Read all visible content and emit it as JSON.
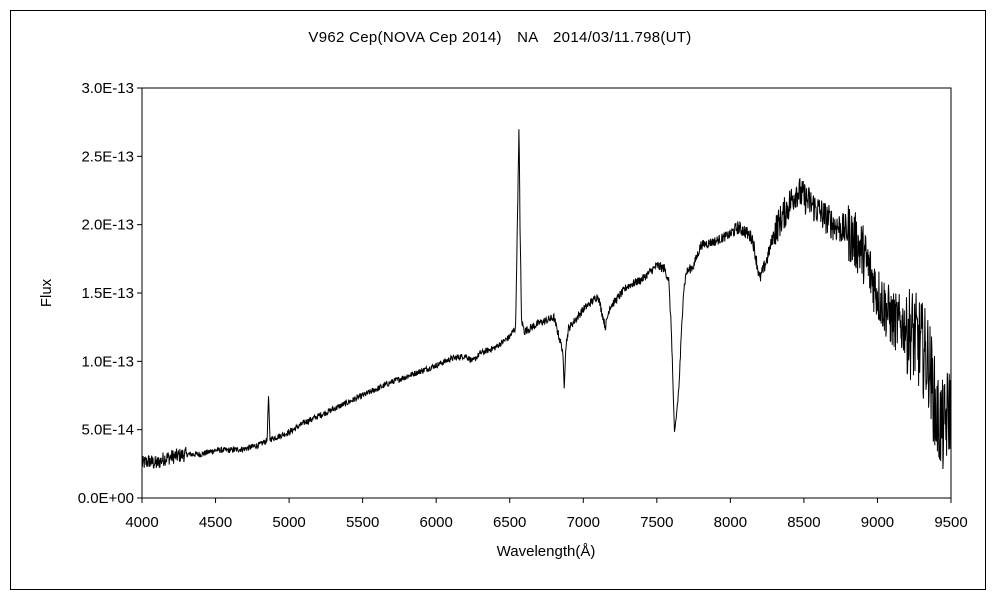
{
  "chart_data": {
    "type": "line",
    "title": "V962 Cep(NOVA Cep 2014)　NA　2014/03/11.798(UT)",
    "xlabel": "Wavelength(Å)",
    "ylabel": "Flux",
    "xlim": [
      4000,
      9500
    ],
    "ylim": [
      0,
      3e-13
    ],
    "x_ticks": [
      4000,
      4500,
      5000,
      5500,
      6000,
      6500,
      7000,
      7500,
      8000,
      8500,
      9000,
      9500
    ],
    "x_tick_labels": [
      "4000",
      "4500",
      "5000",
      "5500",
      "6000",
      "6500",
      "7000",
      "7500",
      "8000",
      "8500",
      "9000",
      "9500"
    ],
    "y_ticks": [
      0,
      5e-14,
      1e-13,
      1.5e-13,
      2e-13,
      2.5e-13,
      3e-13
    ],
    "y_tick_labels": [
      "0.0E+00",
      "5.0E-14",
      "1.0E-13",
      "1.5E-13",
      "2.0E-13",
      "2.5E-13",
      "3.0E-13"
    ],
    "grid": false,
    "legend": "none",
    "line_color": "#000000",
    "series": [
      {
        "x": [
          4000,
          4050,
          4100,
          4150,
          4200,
          4300,
          4400,
          4500,
          4600,
          4700,
          4800,
          4850,
          4860,
          4870,
          4900,
          5000,
          5100,
          5200,
          5300,
          5400,
          5500,
          5600,
          5700,
          5800,
          5900,
          6000,
          6100,
          6200,
          6250,
          6300,
          6400,
          6500,
          6540,
          6555,
          6563,
          6570,
          6580,
          6600,
          6700,
          6800,
          6860,
          6870,
          6880,
          6900,
          7000,
          7100,
          7150,
          7180,
          7200,
          7300,
          7400,
          7500,
          7550,
          7580,
          7600,
          7620,
          7650,
          7680,
          7700,
          7750,
          7800,
          7900,
          8000,
          8050,
          8100,
          8150,
          8200,
          8250,
          8300,
          8400,
          8450,
          8500,
          8600,
          8700,
          8800,
          8900,
          9000,
          9100,
          9200,
          9300,
          9350,
          9400,
          9450,
          9500
        ],
        "y": [
          2.5e-14,
          2.7e-14,
          2.5e-14,
          2.9e-14,
          3e-14,
          3.2e-14,
          3.2e-14,
          3.5e-14,
          3.5e-14,
          3.6e-14,
          3.9e-14,
          4.2e-14,
          7.4e-14,
          4.3e-14,
          4.4e-14,
          4.8e-14,
          5.5e-14,
          6e-14,
          6.5e-14,
          7e-14,
          7.5e-14,
          8e-14,
          8.5e-14,
          8.9e-14,
          9.3e-14,
          9.7e-14,
          1.02e-13,
          1.04e-13,
          1e-13,
          1.06e-13,
          1.1e-13,
          1.18e-13,
          1.25e-13,
          2.2e-13,
          2.71e-13,
          2e-13,
          1.3e-13,
          1.22e-13,
          1.28e-13,
          1.32e-13,
          1.08e-13,
          8e-14,
          1.1e-13,
          1.24e-13,
          1.38e-13,
          1.48e-13,
          1.25e-13,
          1.4e-13,
          1.42e-13,
          1.55e-13,
          1.6e-13,
          1.7e-13,
          1.68e-13,
          1.6e-13,
          1.2e-13,
          4.5e-14,
          8e-14,
          1.5e-13,
          1.65e-13,
          1.7e-13,
          1.85e-13,
          1.88e-13,
          1.93e-13,
          1.98e-13,
          1.95e-13,
          1.9e-13,
          1.6e-13,
          1.75e-13,
          1.95e-13,
          2.15e-13,
          2.25e-13,
          2.2e-13,
          2.1e-13,
          2e-13,
          1.95e-13,
          1.8e-13,
          1.5e-13,
          1.3e-13,
          1.25e-13,
          1.1e-13,
          1e-13,
          6e-14,
          5e-14,
          7e-14
        ]
      }
    ]
  }
}
